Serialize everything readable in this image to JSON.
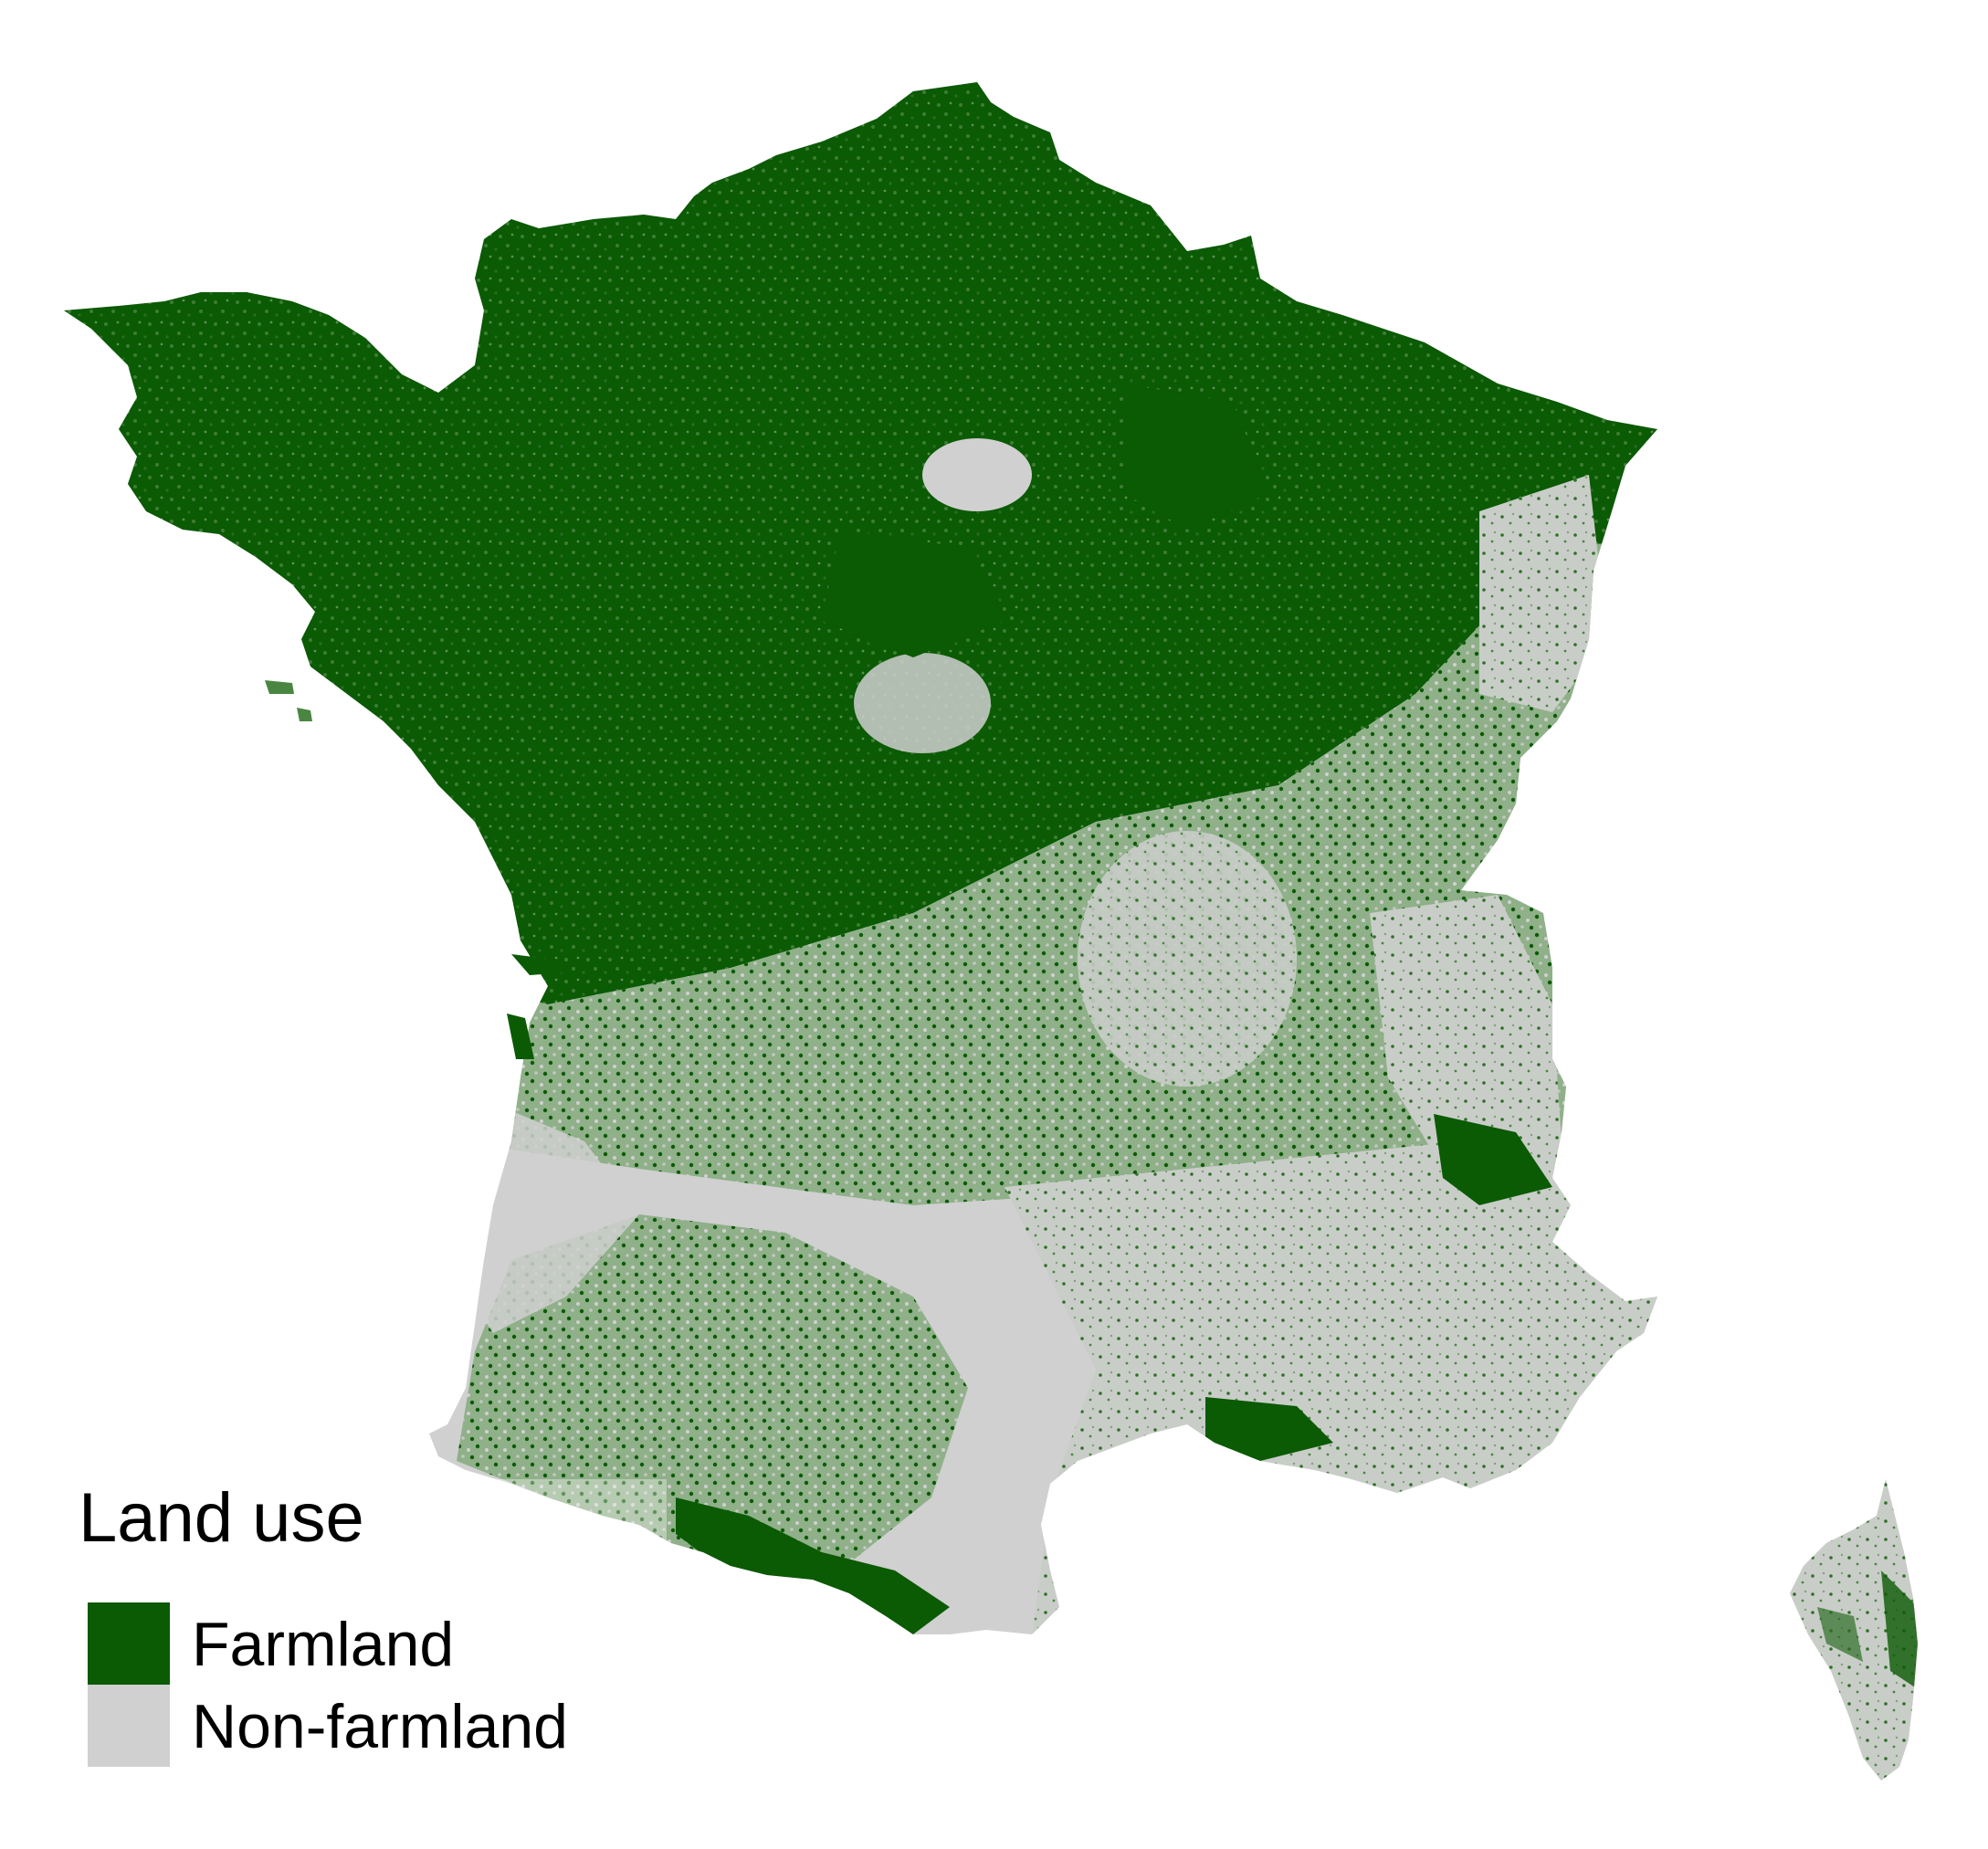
{
  "map": {
    "regions": [
      "mainland-france",
      "corsica"
    ],
    "colors": {
      "farmland": "#0b5a04",
      "non_farmland": "#d0d0d0",
      "background": "#ffffff"
    }
  },
  "legend": {
    "title": "Land use",
    "items": [
      {
        "label": "Farmland",
        "color": "#0b5a04"
      },
      {
        "label": "Non-farmland",
        "color": "#d0d0d0"
      }
    ]
  }
}
